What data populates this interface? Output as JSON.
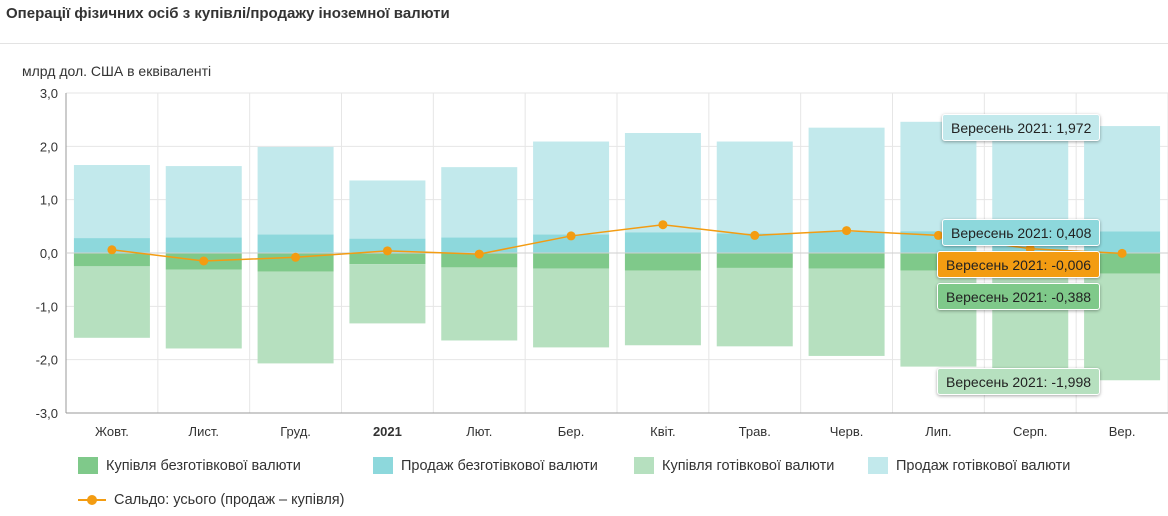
{
  "header": {
    "title": "Операції фізичних осіб з купівлі/продажу іноземної валюти"
  },
  "colors": {
    "buy_cashless": "#7fc98a",
    "sell_cashless": "#8dd8dc",
    "buy_cash": "#b6e0bf",
    "sell_cash": "#c2e9ec",
    "balance": "#f39c12",
    "tooltip_balance": "#f39c12"
  },
  "legend": {
    "items": [
      {
        "label": "Купівля безготівкової валюти",
        "color": "#7fc98a"
      },
      {
        "label": "Продаж безготівкової валюти",
        "color": "#8dd8dc"
      },
      {
        "label": "Купівля готівкової валюти",
        "color": "#b6e0bf"
      },
      {
        "label": "Продаж готівкової валюти",
        "color": "#c2e9ec"
      }
    ],
    "line_label": "Сальдо: усього (продаж – купівля)"
  },
  "tooltips": {
    "sell_cash": "Вересень 2021: 1,972",
    "sell_cashless": "Вересень 2021: 0,408",
    "balance": "Вересень 2021: -0,006",
    "buy_cashless": "Вересень 2021: -0,388",
    "buy_cash": "Вересень 2021: -1,998"
  },
  "chart_data": {
    "type": "bar",
    "title": "Операції фізичних осіб з купівлі/продажу іноземної валюти",
    "ylabel": "млрд дол. США в еквіваленті",
    "xlabel": "",
    "ylim": [
      -3.0,
      3.0
    ],
    "yticks": [
      "3,0",
      "2,0",
      "1,0",
      "0,0",
      "-1,0",
      "-2,0",
      "-3,0"
    ],
    "ytick_values": [
      3,
      2,
      1,
      0,
      -1,
      -2,
      -3
    ],
    "grid": true,
    "stacked": true,
    "categories": [
      "Жовт.",
      "Лист.",
      "Груд.",
      "2021",
      "Лют.",
      "Бер.",
      "Квіт.",
      "Трав.",
      "Черв.",
      "Лип.",
      "Серп.",
      "Вер."
    ],
    "bold_categories": [
      "2021"
    ],
    "series": [
      {
        "name": "Продаж безготівкової валюти",
        "key": "sell_cashless",
        "values": [
          0.28,
          0.29,
          0.35,
          0.27,
          0.29,
          0.35,
          0.39,
          0.37,
          0.4,
          0.41,
          0.4,
          0.408
        ]
      },
      {
        "name": "Продаж готівкової валюти",
        "key": "sell_cash",
        "values": [
          1.37,
          1.34,
          1.64,
          1.09,
          1.32,
          1.74,
          1.86,
          1.72,
          1.95,
          2.05,
          1.95,
          1.972
        ]
      },
      {
        "name": "Купівля безготівкової валюти",
        "key": "buy_cashless",
        "values": [
          -0.25,
          -0.31,
          -0.35,
          -0.21,
          -0.27,
          -0.29,
          -0.33,
          -0.28,
          -0.29,
          -0.33,
          -0.36,
          -0.388
        ]
      },
      {
        "name": "Купівля готівкової валюти",
        "key": "buy_cash",
        "values": [
          -1.34,
          -1.48,
          -1.72,
          -1.11,
          -1.37,
          -1.48,
          -1.4,
          -1.47,
          -1.64,
          -1.8,
          -1.9,
          -1.998
        ]
      }
    ],
    "line": {
      "name": "Сальдо: усього (продаж – купівля)",
      "values": [
        0.06,
        -0.15,
        -0.08,
        0.04,
        -0.02,
        0.32,
        0.53,
        0.33,
        0.42,
        0.33,
        0.08,
        -0.006
      ]
    }
  }
}
